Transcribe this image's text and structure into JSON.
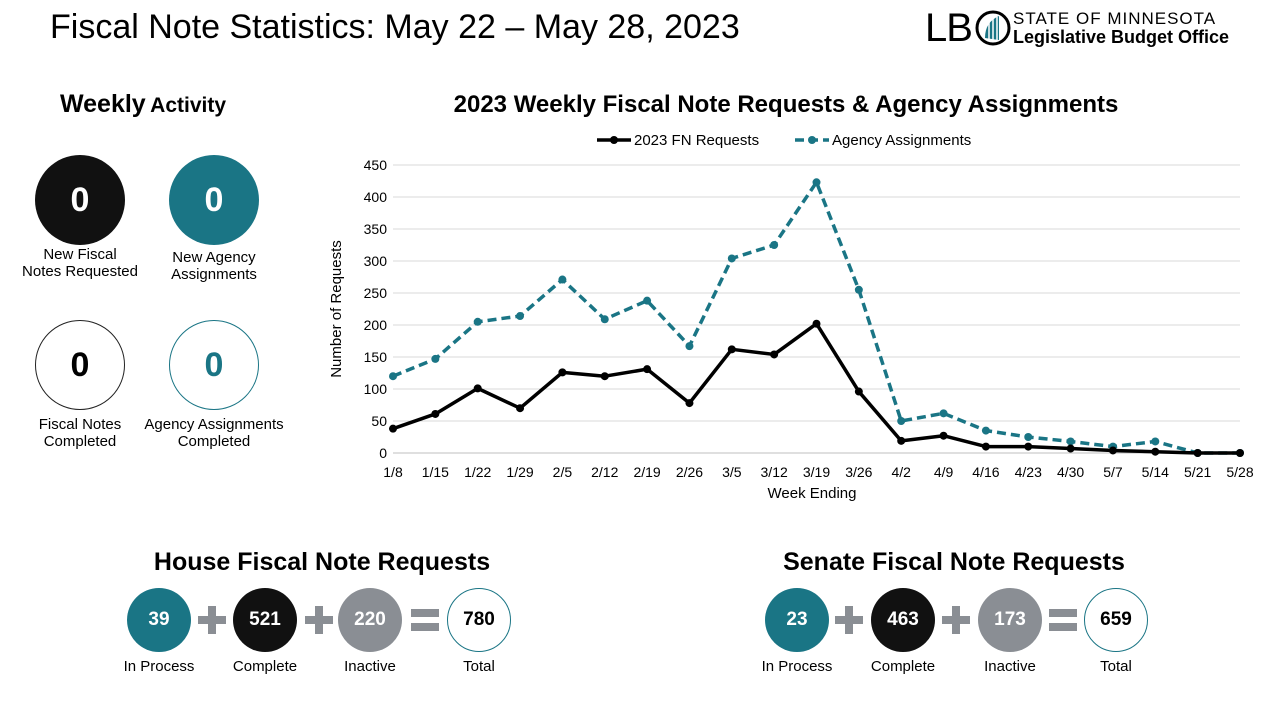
{
  "page": {
    "title": "Fiscal Note Statistics: May 22 – May 28, 2023"
  },
  "logo": {
    "abbrev_prefix": "LB",
    "line1": "STATE OF MINNESOTA",
    "line2": "Legislative Budget Office"
  },
  "weekly": {
    "heading_bold": "Weekly",
    "heading_rest": "Activity",
    "stats": [
      {
        "value": "0",
        "label_line1": "New Fiscal",
        "label_line2": "Notes Requested"
      },
      {
        "value": "0",
        "label_line1": "New Agency",
        "label_line2": "Assignments"
      },
      {
        "value": "0",
        "label_line1": "Fiscal Notes",
        "label_line2": "Completed"
      },
      {
        "value": "0",
        "label_line1": "Agency Assignments",
        "label_line2": "Completed"
      }
    ]
  },
  "colors": {
    "teal": "#1a7585",
    "dark": "#111111",
    "gray": "#8a8e94"
  },
  "chart_data": {
    "type": "line",
    "title": "2023 Weekly Fiscal Note Requests & Agency Assignments",
    "xlabel": "Week Ending",
    "ylabel": "Number of Requests",
    "ylim": [
      0,
      450
    ],
    "yticks": [
      0,
      50,
      100,
      150,
      200,
      250,
      300,
      350,
      400,
      450
    ],
    "grid": true,
    "legend": "top-center",
    "categories": [
      "1/8",
      "1/15",
      "1/22",
      "1/29",
      "2/5",
      "2/12",
      "2/19",
      "2/26",
      "3/5",
      "3/12",
      "3/19",
      "3/26",
      "4/2",
      "4/9",
      "4/16",
      "4/23",
      "4/30",
      "5/7",
      "5/14",
      "5/21",
      "5/28"
    ],
    "series": [
      {
        "name": "2023 FN Requests",
        "style": "solid",
        "color": "#000000",
        "values": [
          38,
          61,
          101,
          70,
          126,
          120,
          131,
          78,
          162,
          154,
          202,
          96,
          19,
          27,
          10,
          10,
          7,
          4,
          2,
          0,
          0
        ]
      },
      {
        "name": "Agency Assignments",
        "style": "dashed",
        "color": "#1a7585",
        "values": [
          120,
          147,
          205,
          214,
          271,
          209,
          238,
          167,
          304,
          325,
          423,
          255,
          50,
          62,
          35,
          25,
          18,
          10,
          18,
          0,
          0
        ]
      }
    ]
  },
  "house": {
    "heading": "House Fiscal Note Requests",
    "items": [
      {
        "value": "39",
        "label": "In Process"
      },
      {
        "value": "521",
        "label": "Complete"
      },
      {
        "value": "220",
        "label": "Inactive"
      },
      {
        "value": "780",
        "label": "Total"
      }
    ]
  },
  "senate": {
    "heading": "Senate Fiscal Note Requests",
    "items": [
      {
        "value": "23",
        "label": "In Process"
      },
      {
        "value": "463",
        "label": "Complete"
      },
      {
        "value": "173",
        "label": "Inactive"
      },
      {
        "value": "659",
        "label": "Total"
      }
    ]
  }
}
